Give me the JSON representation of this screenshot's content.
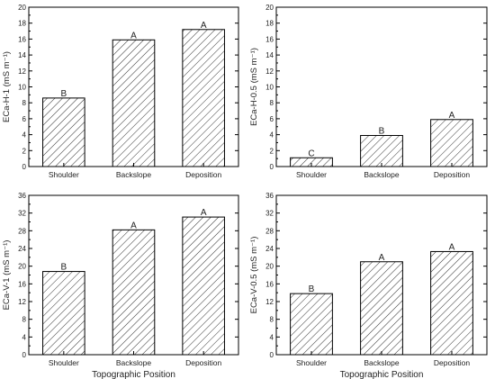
{
  "chart_data": [
    {
      "type": "bar",
      "categories": [
        "Shoulder",
        "Backslope",
        "Deposition"
      ],
      "values": [
        8.6,
        15.9,
        17.2
      ],
      "significance": [
        "B",
        "A",
        "A"
      ],
      "ylabel": "ECa-H-1 (mS m⁻¹)",
      "xlabel": "",
      "ylim": [
        0,
        20
      ],
      "yticks": [
        "0",
        "2",
        "4",
        "6",
        "8",
        "10",
        "12",
        "14",
        "16",
        "18",
        "20"
      ],
      "bar_fill": "diagonal-hatch",
      "grid": false
    },
    {
      "type": "bar",
      "categories": [
        "Shoulder",
        "Backslope",
        "Deposition"
      ],
      "values": [
        1.1,
        3.9,
        5.9
      ],
      "significance": [
        "C",
        "B",
        "A"
      ],
      "ylabel": "ECa-H-0.5 (mS m⁻¹)",
      "xlabel": "",
      "ylim": [
        0,
        20
      ],
      "yticks": [
        "0",
        "2",
        "4",
        "6",
        "8",
        "10",
        "12",
        "14",
        "16",
        "18",
        "20"
      ],
      "bar_fill": "diagonal-hatch",
      "grid": false
    },
    {
      "type": "bar",
      "categories": [
        "Shoulder",
        "Backslope",
        "Deposition"
      ],
      "values": [
        18.8,
        28.2,
        31.1
      ],
      "significance": [
        "B",
        "A",
        "A"
      ],
      "ylabel": "ECa-V-1 (mS m⁻¹)",
      "xlabel": "Topographic Position",
      "ylim": [
        0,
        36
      ],
      "yticks": [
        "0",
        "4",
        "8",
        "12",
        "16",
        "20",
        "24",
        "28",
        "32",
        "36"
      ],
      "bar_fill": "diagonal-hatch",
      "grid": false
    },
    {
      "type": "bar",
      "categories": [
        "Shoulder",
        "Backslope",
        "Deposition"
      ],
      "values": [
        13.8,
        21.0,
        23.3
      ],
      "significance": [
        "B",
        "A",
        "A"
      ],
      "ylabel": "ECa-V-0.5 (mS m⁻¹)",
      "xlabel": "Topographic Position",
      "ylim": [
        0,
        36
      ],
      "yticks": [
        "0",
        "4",
        "8",
        "12",
        "16",
        "20",
        "24",
        "28",
        "32",
        "36"
      ],
      "bar_fill": "diagonal-hatch",
      "grid": false
    }
  ]
}
